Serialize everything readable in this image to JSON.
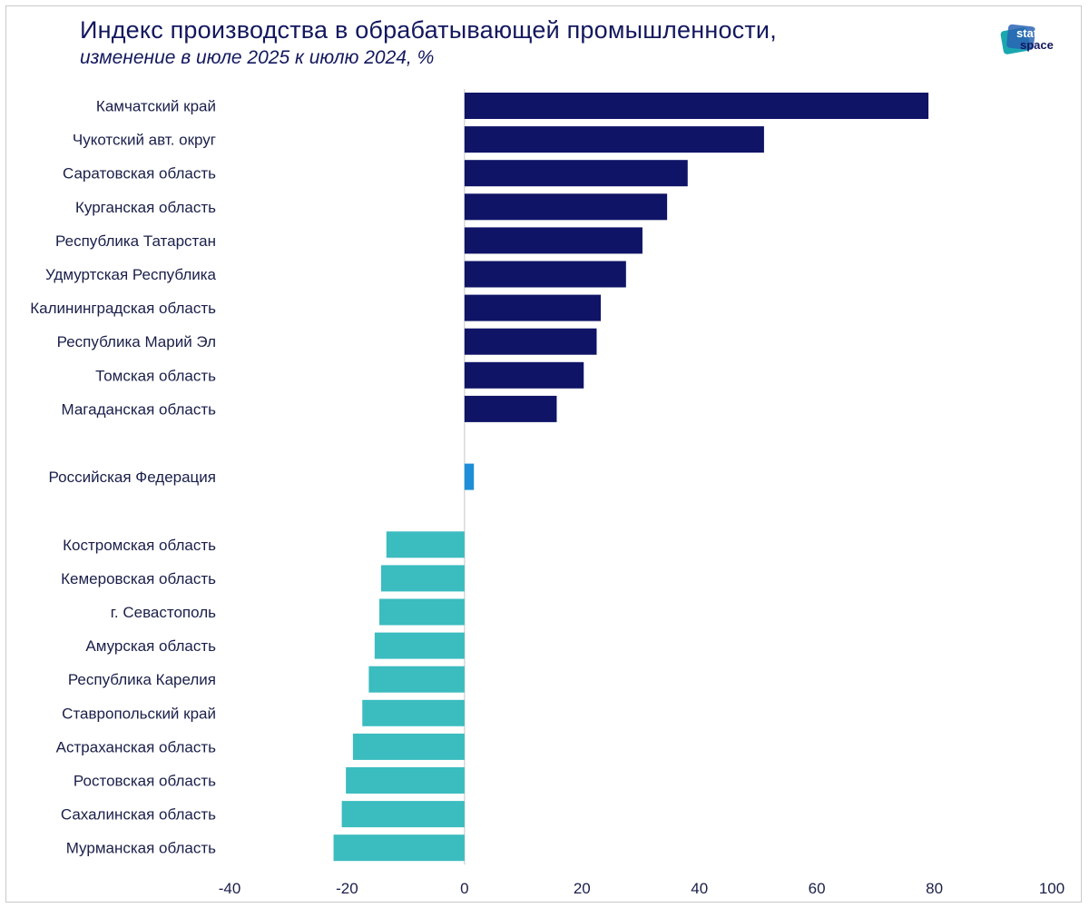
{
  "title": "Индекс производства в обрабатывающей промышленности,",
  "subtitle": "изменение в июле 2025 к июлю 2024, %",
  "logo": {
    "text_top": "stat",
    "text_bottom": "space"
  },
  "colors": {
    "positive": "#0f1466",
    "federation": "#1e8ed8",
    "negative": "#3bbcbf",
    "text": "#1a1f4a",
    "axis": "#cfcfcf"
  },
  "chart_data": {
    "type": "bar",
    "orientation": "horizontal",
    "xlim": [
      -40,
      100
    ],
    "xticks": [
      -40,
      -20,
      0,
      20,
      40,
      60,
      80,
      100
    ],
    "grid": false,
    "groups": [
      {
        "color_key": "positive",
        "categories": [
          "Камчатский край",
          "Чукотский авт. округ",
          "Саратовская область",
          "Курганская область",
          "Республика Татарстан",
          "Удмуртская Республика",
          "Калининградская область",
          "Республика Марий Эл",
          "Томская область",
          "Магаданская область"
        ],
        "values": [
          79,
          51,
          38,
          34.5,
          30.3,
          27.5,
          23.2,
          22.5,
          20.3,
          15.7
        ]
      },
      {
        "color_key": "federation",
        "categories": [
          "Российская Федерация"
        ],
        "values": [
          1.6
        ]
      },
      {
        "color_key": "negative",
        "categories": [
          "Костромская область",
          "Кемеровская область",
          "г. Севастополь",
          "Амурская область",
          "Республика Карелия",
          "Ставропольский край",
          "Астраханская область",
          "Ростовская область",
          "Сахалинская область",
          "Мурманская область"
        ],
        "values": [
          -13.3,
          -14.2,
          -14.5,
          -15.3,
          -16.3,
          -17.4,
          -19,
          -20.2,
          -20.9,
          -22.3
        ]
      }
    ]
  }
}
